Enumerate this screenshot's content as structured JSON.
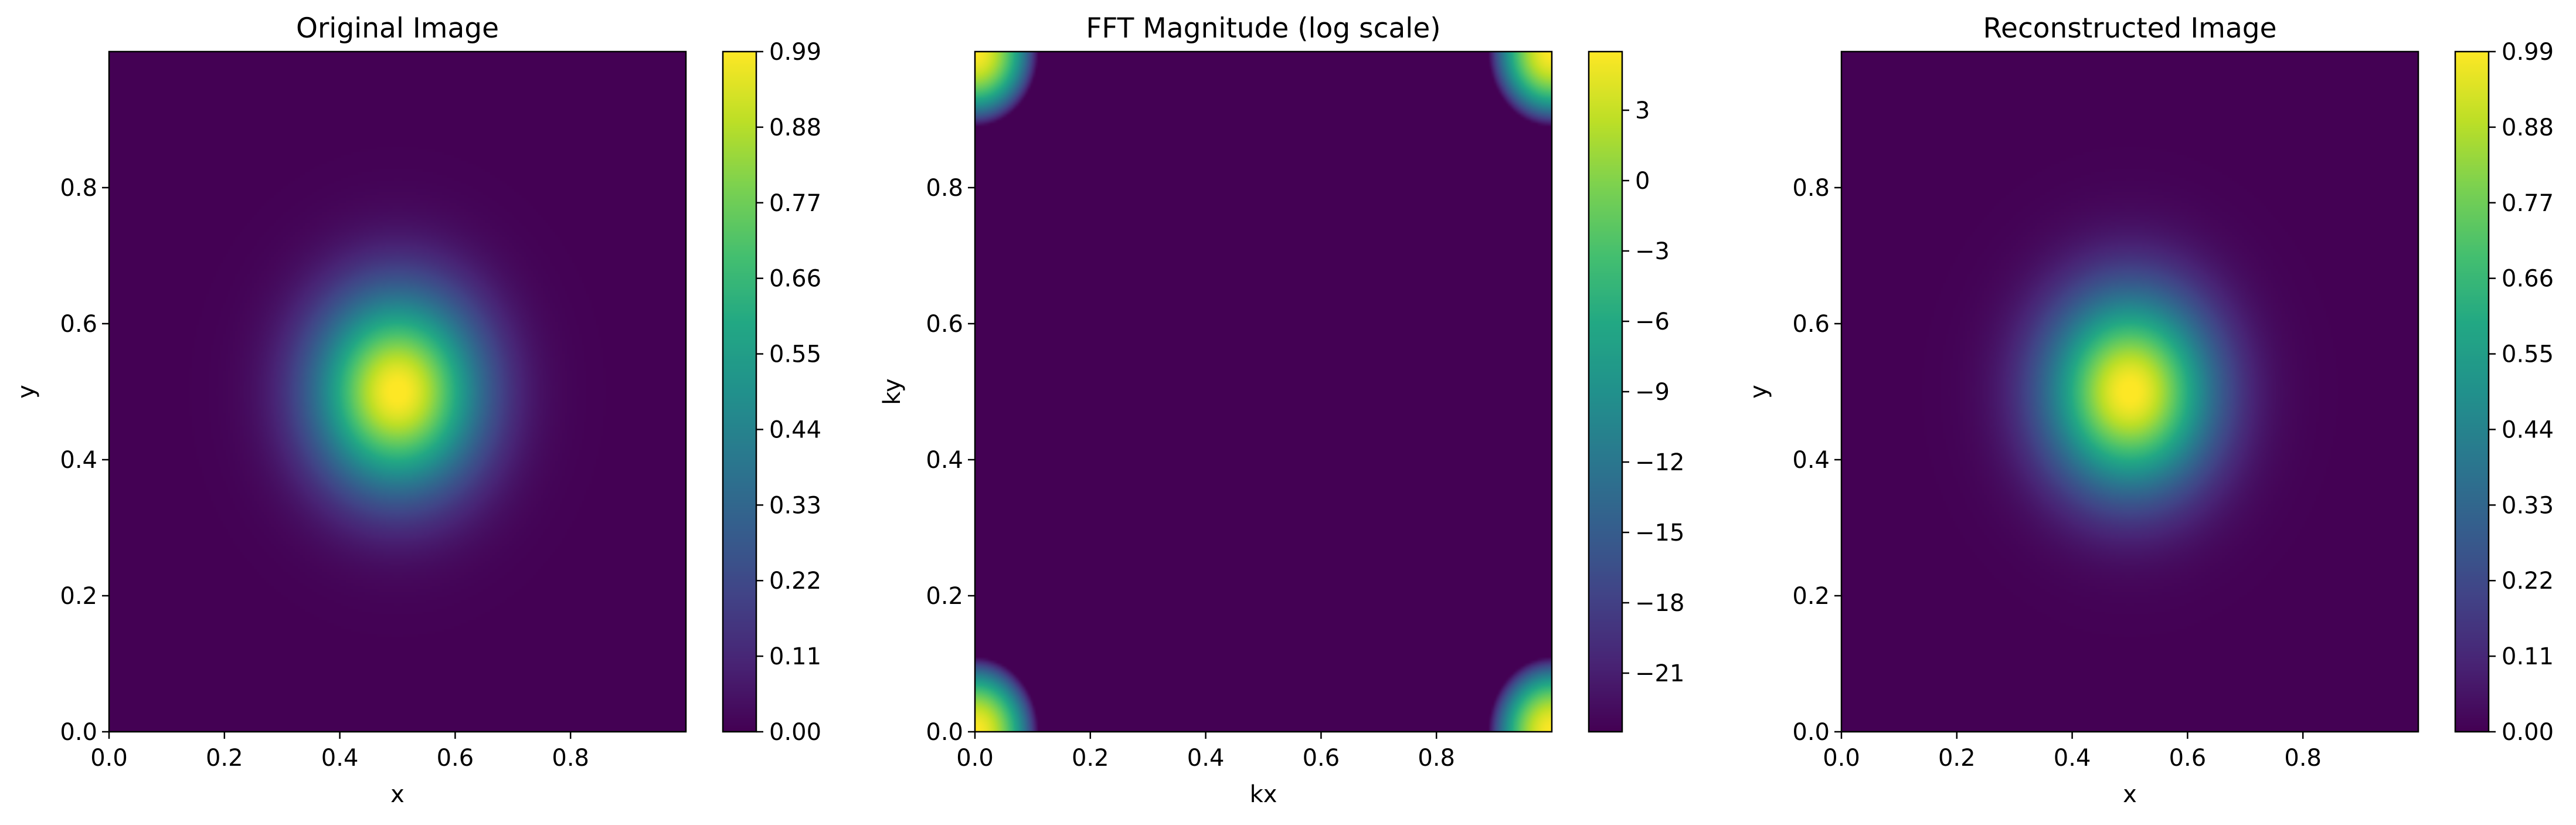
{
  "chart_data": [
    {
      "type": "heatmap",
      "title": "Original Image",
      "xlabel": "x",
      "ylabel": "y",
      "xlim": [
        0,
        1
      ],
      "ylim": [
        0,
        1
      ],
      "xticks": [
        "0.0",
        "0.2",
        "0.4",
        "0.6",
        "0.8"
      ],
      "yticks": [
        "0.0",
        "0.2",
        "0.4",
        "0.6",
        "0.8"
      ],
      "colormap": "viridis",
      "data": {
        "kind": "gaussian",
        "center": [
          0.5,
          0.5
        ],
        "sigma": 0.1,
        "peak": 1.0
      },
      "colorbar": {
        "range": [
          0.0,
          0.99
        ],
        "ticks": [
          "0.00",
          "0.11",
          "0.22",
          "0.33",
          "0.44",
          "0.55",
          "0.66",
          "0.77",
          "0.88",
          "0.99"
        ]
      }
    },
    {
      "type": "heatmap",
      "title": "FFT Magnitude (log scale)",
      "xlabel": "kx",
      "ylabel": "ky",
      "xlim": [
        0,
        1
      ],
      "ylim": [
        0,
        1
      ],
      "xticks": [
        "0.0",
        "0.2",
        "0.4",
        "0.6",
        "0.8"
      ],
      "yticks": [
        "0.0",
        "0.2",
        "0.4",
        "0.6",
        "0.8"
      ],
      "colormap": "viridis",
      "data": {
        "kind": "log_fft_gaussian",
        "min": -23.5,
        "max": 5.5
      },
      "colorbar": {
        "range": [
          -23.5,
          5.5
        ],
        "ticks": [
          "3",
          "0",
          "−3",
          "−6",
          "−9",
          "−12",
          "−15",
          "−18",
          "−21"
        ]
      }
    },
    {
      "type": "heatmap",
      "title": "Reconstructed Image",
      "xlabel": "x",
      "ylabel": "y",
      "xlim": [
        0,
        1
      ],
      "ylim": [
        0,
        1
      ],
      "xticks": [
        "0.0",
        "0.2",
        "0.4",
        "0.6",
        "0.8"
      ],
      "yticks": [
        "0.0",
        "0.2",
        "0.4",
        "0.6",
        "0.8"
      ],
      "colormap": "viridis",
      "data": {
        "kind": "gaussian",
        "center": [
          0.5,
          0.5
        ],
        "sigma": 0.1,
        "peak": 1.0
      },
      "colorbar": {
        "range": [
          0.0,
          0.99
        ],
        "ticks": [
          "0.00",
          "0.11",
          "0.22",
          "0.33",
          "0.44",
          "0.55",
          "0.66",
          "0.77",
          "0.88",
          "0.99"
        ]
      }
    }
  ]
}
